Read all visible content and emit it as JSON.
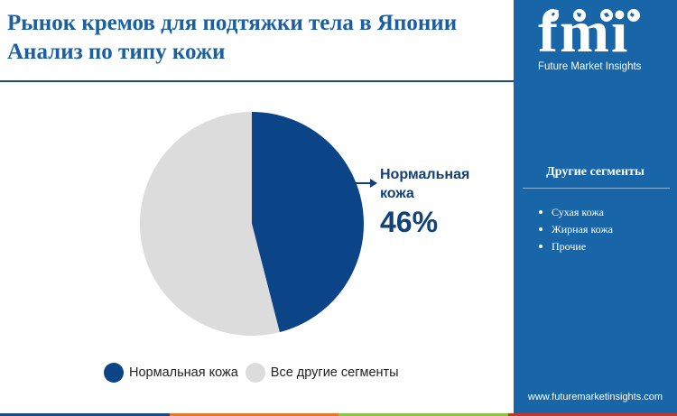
{
  "header": {
    "title_line1": "Рынок кремов для подтяжки тела в Японии",
    "title_line2": "Анализ по типу кожи"
  },
  "brand": {
    "logo_letters": "fmi",
    "logo_subtitle": "Future Market Insights",
    "website": "www.futuremarketinsights.com"
  },
  "sidebar": {
    "segments_title": "Другие сегменты",
    "segments": [
      "Сухая кожа",
      "Жирная кожа",
      "Прочие"
    ]
  },
  "colors": {
    "primary": "#0b4587",
    "other": "#dcdcdc",
    "sidebar": "#1866a8",
    "bottom_bar": [
      "#1b4a86",
      "#e0792b",
      "#8bc34a",
      "#c0392b"
    ]
  },
  "chart_data": {
    "type": "pie",
    "slices": [
      {
        "label": "Нормальная кожа",
        "value": 46,
        "color": "#0b4587"
      },
      {
        "label": "Все другие сегменты",
        "value": 54,
        "color": "#dcdcdc"
      }
    ],
    "callout": {
      "label_line1": "Нормальная",
      "label_line2": "кожа",
      "value": "46%"
    },
    "legend": [
      "Нормальная кожа",
      "Все другие сегменты"
    ],
    "legend_position": "bottom"
  }
}
